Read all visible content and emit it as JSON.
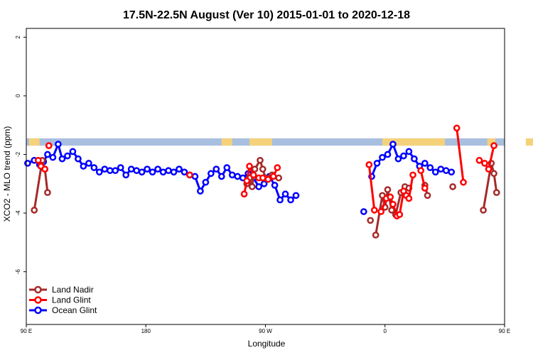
{
  "chart_data": {
    "type": "line",
    "title": "17.5N-22.5N August (Ver 10)   2015-01-01 to 2020-12-18",
    "xlabel": "Longitude",
    "ylabel": "XCO2 - MLO trend (ppm)",
    "xlim": [
      90,
      450
    ],
    "ylim": [
      -7.8,
      2.3
    ],
    "x_ticks": [
      {
        "value": 90,
        "label": "90 E"
      },
      {
        "value": 180,
        "label": "180"
      },
      {
        "value": 270,
        "label": "90 W"
      },
      {
        "value": 360,
        "label": "0"
      },
      {
        "value": 450,
        "label": "90 E"
      },
      {
        "value": 540,
        "label": "180"
      }
    ],
    "y_ticks": [
      {
        "value": 2,
        "label": "2"
      },
      {
        "value": 0,
        "label": "0"
      },
      {
        "value": -2,
        "label": "-2"
      },
      {
        "value": -4,
        "label": "-4"
      },
      {
        "value": -6,
        "label": "-6"
      }
    ],
    "grid": false,
    "legend_position": "bottom-left",
    "land_band": {
      "y_range": [
        -1.7,
        -1.45
      ],
      "ocean_color": "#a8bfe0",
      "land_color": "#f5d27a",
      "land_segments": [
        [
          92,
          100
        ],
        [
          237,
          245
        ],
        [
          258,
          275
        ],
        [
          358,
          405
        ],
        [
          437,
          443
        ],
        [
          466,
          472
        ],
        [
          480,
          498
        ]
      ]
    },
    "series": [
      {
        "name": "Land Nadir",
        "color": "#a52a2a",
        "segments": [
          [
            [
              96,
              -3.9
            ],
            [
              102,
              -2.2
            ],
            [
              104,
              -2.5
            ],
            [
              106,
              -3.3
            ]
          ],
          [
            [
              256,
              -3.0
            ],
            [
              258,
              -2.8
            ],
            [
              260,
              -3.1
            ],
            [
              262,
              -2.5
            ],
            [
              266,
              -2.2
            ],
            [
              268,
              -2.5
            ],
            [
              270,
              -2.8
            ],
            [
              275,
              -2.7
            ],
            [
              280,
              -2.8
            ]
          ],
          [
            [
              349,
              -4.25
            ]
          ],
          [
            [
              353,
              -4.75
            ],
            [
              358,
              -3.4
            ],
            [
              360,
              -3.8
            ],
            [
              362,
              -3.2
            ],
            [
              365,
              -3.9
            ],
            [
              368,
              -4.05
            ],
            [
              372,
              -3.3
            ],
            [
              375,
              -3.1
            ],
            [
              378,
              -3.15
            ]
          ],
          [
            [
              390,
              -3.05
            ],
            [
              392,
              -3.4
            ]
          ],
          [
            [
              411,
              -3.1
            ]
          ],
          [
            [
              434,
              -3.9
            ],
            [
              440,
              -2.3
            ],
            [
              442,
              -2.65
            ],
            [
              444,
              -3.3
            ]
          ]
        ]
      },
      {
        "name": "Land Glint",
        "color": "#ff0000",
        "segments": [
          [
            [
              99,
              -2.2
            ],
            [
              101,
              -2.4
            ],
            [
              104,
              -2.5
            ]
          ],
          [
            [
              107,
              -1.7
            ]
          ],
          [
            [
              213,
              -2.7
            ]
          ],
          [
            [
              254,
              -3.35
            ],
            [
              256,
              -2.9
            ],
            [
              258,
              -2.4
            ],
            [
              261,
              -2.7
            ],
            [
              265,
              -2.8
            ],
            [
              268,
              -2.8
            ],
            [
              272,
              -2.85
            ],
            [
              276,
              -2.75
            ],
            [
              279,
              -2.45
            ]
          ],
          [
            [
              348,
              -2.35
            ],
            [
              352,
              -3.9
            ]
          ],
          [
            [
              357,
              -3.95
            ],
            [
              361,
              -3.5
            ],
            [
              364,
              -3.45
            ],
            [
              366,
              -3.7
            ],
            [
              369,
              -4.1
            ],
            [
              371,
              -4.05
            ],
            [
              374,
              -3.25
            ],
            [
              376,
              -3.4
            ],
            [
              378,
              -3.5
            ],
            [
              381,
              -2.7
            ]
          ],
          [
            [
              387,
              -2.55
            ],
            [
              390,
              -3.15
            ]
          ],
          [
            [
              414,
              -1.1
            ],
            [
              419,
              -2.95
            ]
          ],
          [
            [
              431,
              -2.2
            ],
            [
              435,
              -2.3
            ],
            [
              438,
              -2.5
            ],
            [
              442,
              -1.7
            ]
          ]
        ]
      },
      {
        "name": "Ocean Glint",
        "color": "#0000ff",
        "segments": [
          [
            [
              91,
              -2.3
            ],
            [
              96,
              -2.2
            ],
            [
              100,
              -2.35
            ],
            [
              103,
              -2.25
            ],
            [
              106,
              -2.0
            ],
            [
              110,
              -2.1
            ],
            [
              114,
              -1.65
            ],
            [
              117,
              -2.15
            ],
            [
              121,
              -2.05
            ],
            [
              125,
              -1.9
            ],
            [
              129,
              -2.15
            ],
            [
              133,
              -2.4
            ],
            [
              137,
              -2.3
            ],
            [
              141,
              -2.45
            ],
            [
              145,
              -2.6
            ],
            [
              149,
              -2.5
            ],
            [
              153,
              -2.55
            ],
            [
              157,
              -2.55
            ],
            [
              161,
              -2.45
            ],
            [
              165,
              -2.7
            ],
            [
              169,
              -2.5
            ],
            [
              173,
              -2.55
            ],
            [
              177,
              -2.6
            ],
            [
              181,
              -2.5
            ],
            [
              185,
              -2.6
            ],
            [
              189,
              -2.5
            ],
            [
              193,
              -2.6
            ],
            [
              197,
              -2.55
            ],
            [
              201,
              -2.6
            ],
            [
              205,
              -2.5
            ],
            [
              209,
              -2.6
            ],
            [
              213,
              -2.7
            ],
            [
              217,
              -2.75
            ],
            [
              221,
              -3.25
            ],
            [
              225,
              -2.95
            ],
            [
              229,
              -2.65
            ],
            [
              233,
              -2.5
            ],
            [
              237,
              -2.75
            ],
            [
              241,
              -2.45
            ],
            [
              245,
              -2.7
            ],
            [
              249,
              -2.75
            ],
            [
              253,
              -2.8
            ],
            [
              257,
              -2.65
            ],
            [
              261,
              -2.8
            ],
            [
              265,
              -3.1
            ],
            [
              269,
              -3.0
            ],
            [
              273,
              -2.75
            ],
            [
              277,
              -3.05
            ],
            [
              281,
              -3.55
            ],
            [
              285,
              -3.35
            ],
            [
              289,
              -3.55
            ],
            [
              293,
              -3.4
            ]
          ],
          [
            [
              344,
              -3.95
            ]
          ],
          [
            [
              350,
              -2.75
            ],
            [
              354,
              -2.3
            ],
            [
              358,
              -2.1
            ],
            [
              362,
              -2.0
            ],
            [
              366,
              -1.65
            ],
            [
              370,
              -2.15
            ],
            [
              374,
              -2.05
            ],
            [
              378,
              -1.9
            ],
            [
              382,
              -2.15
            ],
            [
              386,
              -2.4
            ],
            [
              390,
              -2.3
            ],
            [
              394,
              -2.45
            ],
            [
              398,
              -2.6
            ],
            [
              402,
              -2.5
            ],
            [
              406,
              -2.55
            ],
            [
              410,
              -2.6
            ]
          ]
        ]
      }
    ]
  }
}
